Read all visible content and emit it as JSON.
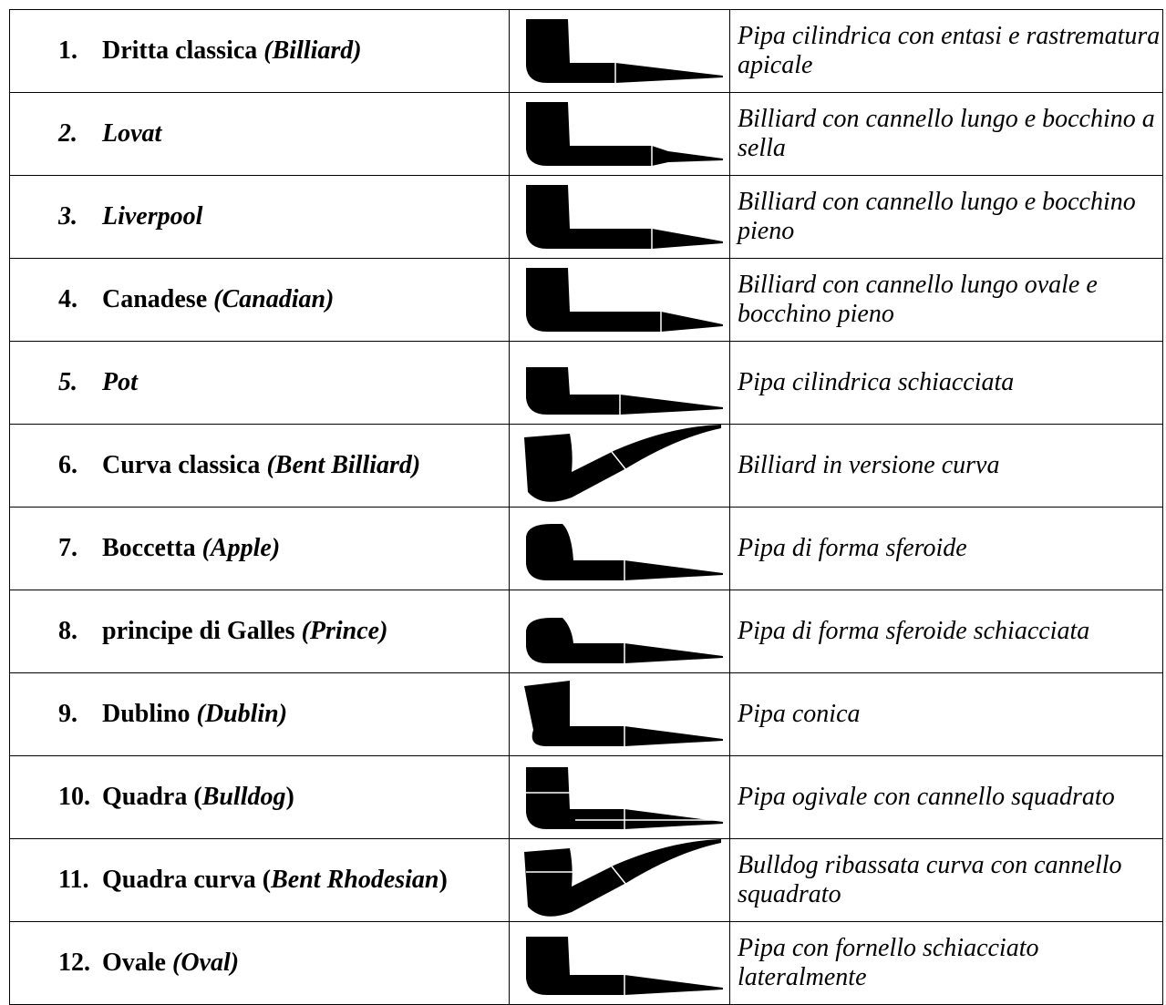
{
  "table": {
    "rows": [
      {
        "number": {
          "text": "1.",
          "italic": false
        },
        "name": [
          {
            "text": "Dritta classica ",
            "italic": false
          },
          {
            "text": "(Billiard)",
            "italic": true
          }
        ],
        "description": "Pipa cilindrica con entasi e rastrematura apicale"
      },
      {
        "number": {
          "text": "2.",
          "italic": true
        },
        "name": [
          {
            "text": "Lovat",
            "italic": true
          }
        ],
        "description": "Billiard con cannello lungo e bocchino a sella"
      },
      {
        "number": {
          "text": "3.",
          "italic": true
        },
        "name": [
          {
            "text": "Liverpool",
            "italic": true
          }
        ],
        "description": "Billiard con cannello lungo e bocchino pieno"
      },
      {
        "number": {
          "text": "4.",
          "italic": false
        },
        "name": [
          {
            "text": "Canadese ",
            "italic": false
          },
          {
            "text": "(Canadian)",
            "italic": true
          }
        ],
        "description": "Billiard con cannello lungo ovale e bocchino pieno"
      },
      {
        "number": {
          "text": "5.",
          "italic": true
        },
        "name": [
          {
            "text": "Pot",
            "italic": true
          }
        ],
        "description": "Pipa cilindrica schiacciata"
      },
      {
        "number": {
          "text": "6.",
          "italic": false
        },
        "name": [
          {
            "text": "Curva classica ",
            "italic": false
          },
          {
            "text": "(Bent Billiard)",
            "italic": true
          }
        ],
        "description": "Billiard in versione curva"
      },
      {
        "number": {
          "text": "7.",
          "italic": false
        },
        "name": [
          {
            "text": "Boccetta ",
            "italic": false
          },
          {
            "text": "(Apple)",
            "italic": true
          }
        ],
        "description": "Pipa di forma sferoide"
      },
      {
        "number": {
          "text": "8.",
          "italic": false
        },
        "name": [
          {
            "text": "principe di Galles ",
            "italic": false
          },
          {
            "text": "(Prince)",
            "italic": true
          }
        ],
        "description": "Pipa di forma sferoide schiacciata"
      },
      {
        "number": {
          "text": "9.",
          "italic": false
        },
        "name": [
          {
            "text": "Dublino ",
            "italic": false
          },
          {
            "text": "(Dublin)",
            "italic": true
          }
        ],
        "description": "Pipa conica"
      },
      {
        "number": {
          "text": "10.",
          "italic": false
        },
        "name": [
          {
            "text": "Quadra (",
            "italic": false
          },
          {
            "text": "Bulldog",
            "italic": true
          },
          {
            "text": ")",
            "italic": false
          }
        ],
        "description": "Pipa ogivale con cannello squadrato"
      },
      {
        "number": {
          "text": "11.",
          "italic": false
        },
        "name": [
          {
            "text": "Quadra curva (",
            "italic": false
          },
          {
            "text": "Bent Rhodesian",
            "italic": true
          },
          {
            "text": ")",
            "italic": false
          }
        ],
        "description": "Bulldog ribassata curva con cannello squadrato"
      },
      {
        "number": {
          "text": "12.",
          "italic": false
        },
        "name": [
          {
            "text": "Ovale ",
            "italic": false
          },
          {
            "text": "(Oval)",
            "italic": true
          }
        ],
        "description": "Pipa con fornello schiacciato lateralmente"
      }
    ]
  }
}
